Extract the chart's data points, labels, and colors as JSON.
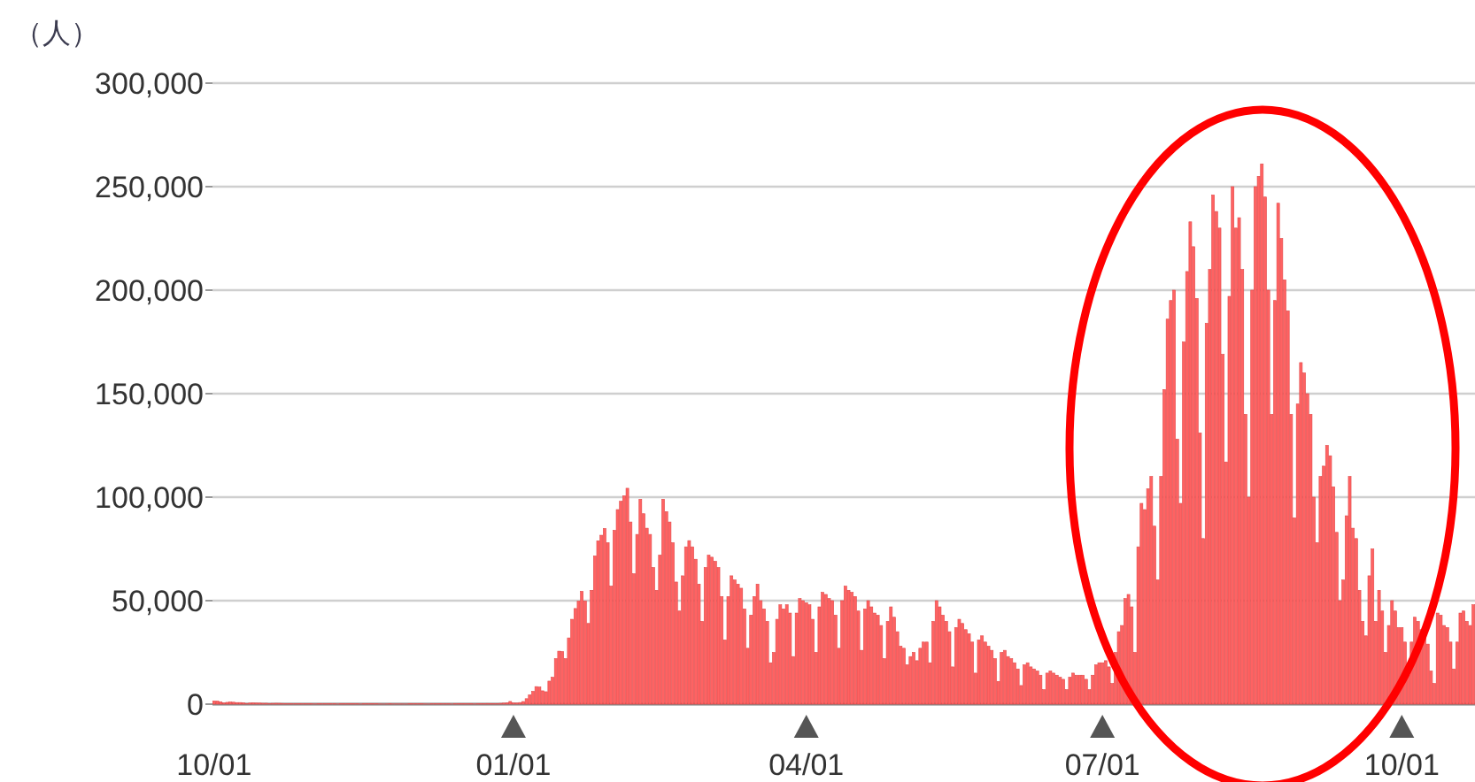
{
  "chart_data": {
    "type": "bar",
    "ylabel": "（人）",
    "color": "#ff6262",
    "grid": "y",
    "ylim": [
      0,
      300000
    ],
    "yticks": [
      {
        "value": 0,
        "label": "0"
      },
      {
        "value": 50000,
        "label": "50,000"
      },
      {
        "value": 100000,
        "label": "100,000"
      },
      {
        "value": 150000,
        "label": "150,000"
      },
      {
        "value": 200000,
        "label": "200,000"
      },
      {
        "value": 250000,
        "label": "250,000"
      },
      {
        "value": 300000,
        "label": "300,000"
      }
    ],
    "categories": [
      "10/01",
      null,
      null,
      null,
      null,
      null,
      null,
      null,
      null,
      null,
      null,
      null,
      null,
      null,
      null,
      null,
      null,
      null,
      null,
      null,
      null,
      null,
      null,
      null,
      null,
      null,
      null,
      null,
      null,
      null,
      null,
      null,
      null,
      null,
      null,
      null,
      null,
      null,
      null,
      null,
      null,
      null,
      null,
      null,
      null,
      null,
      null,
      null,
      null,
      null,
      null,
      null,
      null,
      null,
      null,
      null,
      null,
      null,
      null,
      null,
      null,
      null,
      null,
      null,
      null,
      null,
      null,
      null,
      null,
      null,
      null,
      null,
      null,
      null,
      null,
      null,
      null,
      null,
      null,
      null,
      null,
      null,
      null,
      null,
      null,
      null,
      null,
      null,
      null,
      null,
      null,
      null,
      "01/01",
      null,
      null,
      null,
      null,
      null,
      null,
      null,
      null,
      null,
      null,
      null,
      null,
      null,
      null,
      null,
      null,
      null,
      null,
      null,
      null,
      null,
      null,
      null,
      null,
      null,
      null,
      null,
      null,
      null,
      null,
      null,
      null,
      null,
      null,
      null,
      null,
      null,
      null,
      null,
      null,
      null,
      null,
      null,
      null,
      null,
      null,
      null,
      null,
      null,
      null,
      null,
      null,
      null,
      null,
      null,
      null,
      null,
      null,
      null,
      null,
      null,
      null,
      null,
      null,
      null,
      null,
      null,
      null,
      null,
      null,
      null,
      null,
      null,
      null,
      null,
      null,
      null,
      null,
      null,
      null,
      null,
      null,
      null,
      null,
      null,
      null,
      null,
      null,
      null,
      "04/01",
      null,
      null,
      null,
      null,
      null,
      null,
      null,
      null,
      null,
      null,
      null,
      null,
      null,
      null,
      null,
      null,
      null,
      null,
      null,
      null,
      null,
      null,
      null,
      null,
      null,
      null,
      null,
      null,
      null,
      null,
      null,
      null,
      null,
      null,
      null,
      null,
      null,
      null,
      null,
      null,
      null,
      null,
      null,
      null,
      null,
      null,
      null,
      null,
      null,
      null,
      null,
      null,
      null,
      null,
      null,
      null,
      null,
      null,
      null,
      null,
      null,
      null,
      null,
      null,
      null,
      null,
      null,
      null,
      null,
      null,
      null,
      null,
      null,
      null,
      null,
      null,
      null,
      null,
      null,
      null,
      null,
      null,
      null,
      null,
      null,
      null,
      null,
      null,
      null,
      null,
      "07/01",
      null,
      null,
      null,
      null,
      null,
      null,
      null,
      null,
      null,
      null,
      null,
      null,
      null,
      null,
      null,
      null,
      null,
      null,
      null,
      null,
      null,
      null,
      null,
      null,
      null,
      null,
      null,
      null,
      null,
      null,
      null,
      null,
      null,
      null,
      null,
      null,
      null,
      null,
      null,
      null,
      null,
      null,
      null,
      null,
      null,
      null,
      null,
      null,
      null,
      null,
      null,
      null,
      null,
      null,
      null,
      null,
      null,
      null,
      null,
      null,
      null,
      null,
      null,
      null,
      null,
      null,
      null,
      null,
      null,
      null,
      null,
      null,
      null,
      null,
      null,
      null,
      null,
      null,
      null,
      null,
      null,
      null,
      null,
      null,
      null,
      null,
      null,
      null,
      null,
      null,
      null,
      "10/01",
      null,
      null,
      null,
      null,
      null,
      null,
      null,
      null,
      null,
      null,
      null,
      null,
      null,
      null,
      null,
      null,
      null,
      null,
      null,
      null,
      null,
      null
    ],
    "values": [
      1580,
      1440,
      1130,
      610,
      870,
      1000,
      940,
      770,
      770,
      620,
      340,
      520,
      610,
      530,
      510,
      430,
      430,
      230,
      370,
      420,
      390,
      330,
      290,
      260,
      150,
      230,
      280,
      250,
      260,
      240,
      220,
      110,
      180,
      210,
      160,
      220,
      210,
      160,
      90,
      150,
      200,
      190,
      180,
      170,
      140,
      80,
      150,
      180,
      170,
      150,
      130,
      110,
      60,
      110,
      140,
      120,
      120,
      120,
      100,
      70,
      130,
      130,
      140,
      130,
      130,
      110,
      70,
      140,
      150,
      160,
      170,
      150,
      140,
      80,
      160,
      200,
      210,
      220,
      180,
      180,
      110,
      180,
      250,
      280,
      320,
      290,
      240,
      180,
      380,
      500,
      620,
      1300,
      560,
      530,
      780,
      1270,
      2640,
      4470,
      6200,
      8480,
      8250,
      6440,
      6000,
      11130,
      13000,
      22000,
      25600,
      25400,
      22000,
      32000,
      41000,
      46200,
      49800,
      54500,
      49800,
      39000,
      55000,
      71600,
      78900,
      81600,
      84900,
      78000,
      57000,
      84000,
      94000,
      98000,
      100600,
      104300,
      88000,
      63000,
      82000,
      99000,
      92000,
      85000,
      82000,
      66000,
      55000,
      72000,
      99000,
      93000,
      88000,
      78000,
      59000,
      45000,
      62000,
      76000,
      79000,
      76000,
      70000,
      58000,
      40000,
      66000,
      72000,
      71000,
      69000,
      66000,
      52000,
      31000,
      52000,
      62000,
      60000,
      58000,
      56000,
      46000,
      27000,
      43000,
      52000,
      58000,
      50000,
      46000,
      40000,
      20000,
      25000,
      41000,
      48000,
      46000,
      48000,
      44000,
      23000,
      44000,
      51000,
      50000,
      49000,
      48000,
      41000,
      25000,
      47000,
      54000,
      53000,
      51000,
      50000,
      43000,
      27000,
      50000,
      57000,
      55000,
      54000,
      52000,
      45000,
      26000,
      46000,
      50000,
      47000,
      44000,
      43000,
      38000,
      22000,
      40000,
      47000,
      42000,
      35000,
      28000,
      27000,
      19000,
      23000,
      25000,
      21000,
      27000,
      30000,
      30000,
      20000,
      40000,
      50000,
      47000,
      43000,
      40000,
      35000,
      18000,
      37000,
      41000,
      39000,
      36000,
      34000,
      30000,
      15000,
      31000,
      33000,
      30000,
      28000,
      26000,
      22000,
      11000,
      25000,
      26000,
      23000,
      22000,
      20000,
      17000,
      9000,
      19000,
      20000,
      18000,
      17000,
      16000,
      14000,
      7000,
      15000,
      16000,
      15000,
      14000,
      13000,
      12000,
      7000,
      13000,
      15000,
      14000,
      14000,
      14000,
      12000,
      7000,
      14000,
      19000,
      20000,
      20000,
      21000,
      18000,
      10000,
      25000,
      35000,
      38000,
      51000,
      53000,
      47000,
      25000,
      76000,
      97000,
      94000,
      104000,
      110000,
      86000,
      60000,
      110000,
      152000,
      186000,
      195000,
      200000,
      128000,
      97000,
      175000,
      209000,
      233000,
      221000,
      196000,
      131000,
      80000,
      184000,
      210000,
      246000,
      238000,
      230000,
      169000,
      117000,
      197000,
      250000,
      230000,
      235000,
      210000,
      140000,
      100000,
      200000,
      250000,
      255000,
      261000,
      245000,
      200000,
      140000,
      195000,
      242000,
      225000,
      205000,
      190000,
      140000,
      90000,
      145000,
      165000,
      160000,
      150000,
      140000,
      100000,
      78000,
      110000,
      115000,
      125000,
      120000,
      105000,
      83000,
      50000,
      60000,
      91000,
      110000,
      85000,
      80000,
      55000,
      40000,
      33000,
      62000,
      75000,
      40000,
      55000,
      45000,
      25000,
      38000,
      50000,
      45000,
      37000,
      37000,
      30000,
      14000,
      30000,
      42000,
      40000,
      36000,
      35000,
      29000,
      16000,
      10000,
      44000,
      43000,
      38000,
      37000,
      30000,
      17000,
      30000,
      44000,
      45000,
      40000,
      38000,
      48000
    ]
  }
}
